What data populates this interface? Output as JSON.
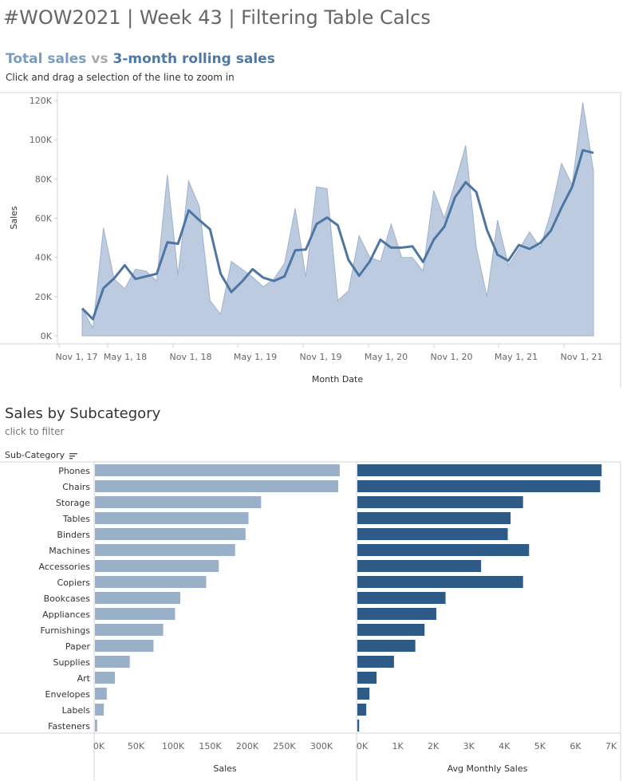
{
  "dashboard": {
    "title": "#WOW2021 | Week 43 | Filtering Table Calcs"
  },
  "line_section": {
    "title_part1": "Total sales",
    "title_part2": " vs ",
    "title_part3": "3-month rolling sales",
    "subtitle": "Click and drag a selection of the line to zoom in"
  },
  "bar_section": {
    "title": "Sales by Subcategory",
    "subtitle": "click to filter",
    "row_header": "Sub-Category",
    "sort_icon": "sort-descending-icon"
  },
  "colors": {
    "area_fill": "#bccbdf",
    "area_stroke": "#9fb2cc",
    "rolling_line": "#4e76a3",
    "sales_bar": "#9ab0c8",
    "avg_bar": "#2e5a87"
  },
  "chart_data": [
    {
      "type": "area",
      "xlabel": "Month Date",
      "ylabel": "Sales",
      "ylim": [
        0,
        125000
      ],
      "y_ticks": [
        "0K",
        "20K",
        "40K",
        "60K",
        "80K",
        "100K",
        "120K"
      ],
      "x_ticks": [
        "Nov 1, 17",
        "May 1, 18",
        "Nov 1, 18",
        "May 1, 19",
        "Nov 1, 19",
        "May 1, 20",
        "Nov 1, 20",
        "May 1, 21",
        "Nov 1, 21"
      ],
      "x": [
        "2017-12",
        "2018-01",
        "2018-02",
        "2018-03",
        "2018-04",
        "2018-05",
        "2018-06",
        "2018-07",
        "2018-08",
        "2018-09",
        "2018-10",
        "2018-11",
        "2018-12",
        "2019-01",
        "2019-02",
        "2019-03",
        "2019-04",
        "2019-05",
        "2019-06",
        "2019-07",
        "2019-08",
        "2019-09",
        "2019-10",
        "2019-11",
        "2019-12",
        "2020-01",
        "2020-02",
        "2020-03",
        "2020-04",
        "2020-05",
        "2020-06",
        "2020-07",
        "2020-08",
        "2020-09",
        "2020-10",
        "2020-11",
        "2020-12",
        "2021-01",
        "2021-02",
        "2021-03",
        "2021-04",
        "2021-05",
        "2021-06",
        "2021-07",
        "2021-08",
        "2021-09",
        "2021-10",
        "2021-11",
        "2021-12"
      ],
      "series": [
        {
          "name": "Total sales",
          "values": [
            14000,
            4000,
            55000,
            29000,
            24000,
            34000,
            33000,
            28000,
            82000,
            31000,
            79000,
            66000,
            18000,
            11000,
            38000,
            34000,
            30000,
            25000,
            29000,
            37000,
            65000,
            30000,
            76000,
            75000,
            18000,
            23000,
            51000,
            40000,
            38000,
            57000,
            40000,
            40000,
            33000,
            74000,
            60000,
            78000,
            97000,
            45000,
            20000,
            59000,
            36000,
            44000,
            53000,
            45000,
            63000,
            88000,
            77000,
            119000,
            84000
          ]
        },
        {
          "name": "3-month rolling sales",
          "values": [
            14000,
            8500,
            24333,
            29333,
            36000,
            29000,
            30333,
            31667,
            47667,
            47000,
            64000,
            59000,
            54333,
            31667,
            22333,
            27667,
            34000,
            29667,
            28000,
            30333,
            43667,
            44000,
            57000,
            60333,
            56333,
            38667,
            30667,
            38000,
            49000,
            45000,
            45000,
            45667,
            37667,
            49000,
            55667,
            70667,
            78333,
            73333,
            54000,
            41333,
            38333,
            46333,
            44333,
            47333,
            53667,
            65333,
            76000,
            94667,
            93333
          ]
        }
      ]
    },
    {
      "type": "bar",
      "xlabel": "Sales",
      "xlim": [
        0,
        345000
      ],
      "x_ticks": [
        "0K",
        "50K",
        "100K",
        "150K",
        "200K",
        "250K",
        "300K"
      ],
      "categories": [
        "Phones",
        "Chairs",
        "Storage",
        "Tables",
        "Binders",
        "Machines",
        "Accessories",
        "Copiers",
        "Bookcases",
        "Appliances",
        "Furnishings",
        "Paper",
        "Supplies",
        "Art",
        "Envelopes",
        "Labels",
        "Fasteners"
      ],
      "values": [
        330000,
        328000,
        224000,
        207000,
        203000,
        189000,
        167000,
        150000,
        115000,
        108000,
        92000,
        79000,
        47000,
        27000,
        16000,
        12000,
        3000
      ]
    },
    {
      "type": "bar",
      "xlabel": "Avg Monthly Sales",
      "xlim": [
        0,
        7000
      ],
      "x_ticks": [
        "0K",
        "1K",
        "2K",
        "3K",
        "4K",
        "5K",
        "6K",
        "7K"
      ],
      "categories": [
        "Phones",
        "Chairs",
        "Storage",
        "Tables",
        "Binders",
        "Machines",
        "Accessories",
        "Copiers",
        "Bookcases",
        "Appliances",
        "Furnishings",
        "Paper",
        "Supplies",
        "Art",
        "Envelopes",
        "Labels",
        "Fasteners"
      ],
      "values": [
        6870,
        6830,
        4660,
        4310,
        4230,
        4830,
        3480,
        4660,
        2480,
        2220,
        1890,
        1630,
        1030,
        540,
        340,
        250,
        50
      ]
    }
  ]
}
